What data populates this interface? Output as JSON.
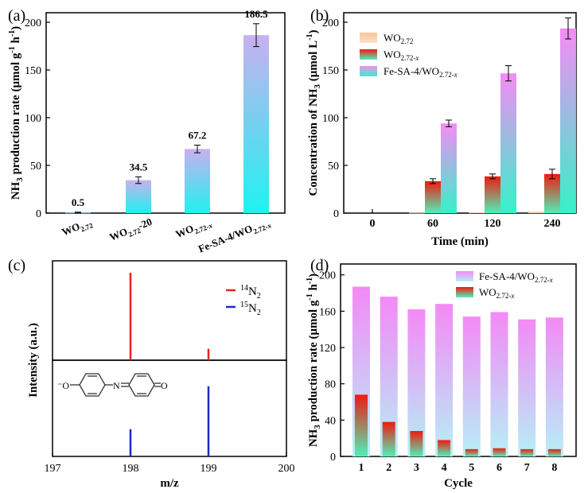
{
  "colors": {
    "purple_top": "#c9b0ef",
    "cyan_bottom": "#1ff2f0",
    "orange": "#f7c79a",
    "red_top": "#ef1a10",
    "green_bottom": "#4ff0b8",
    "magenta_top": "#f58cf5",
    "teal_bottom": "#35f2c8",
    "pink_top": "#f489f6",
    "lightblue_bottom": "#b5f1f6",
    "ms_red": "#e8251c",
    "ms_blue": "#1c2cc6"
  },
  "chart_data": [
    {
      "panel": "(a)",
      "type": "bar",
      "ylabel": "NH3 production rate (μmol g-1 h-1)",
      "ylim": [
        0,
        210
      ],
      "yticks": [
        "0",
        "50",
        "100",
        "150",
        "200"
      ],
      "categories": [
        "WO2.72",
        "WO2.72-20",
        "WO2.72-x",
        "Fe-SA-4/WO2.72-x"
      ],
      "values": [
        0.5,
        34.5,
        67.2,
        186.5
      ],
      "errors": [
        0.5,
        3.5,
        4.0,
        12.0
      ],
      "data_labels": [
        "0.5",
        "34.5",
        "67.2",
        "186.5"
      ]
    },
    {
      "panel": "(b)",
      "type": "bar",
      "xlabel": "Time (min)",
      "ylabel": "Concentration of NH3 (μmol L-1)",
      "ylim": [
        0,
        210
      ],
      "yticks": [
        "0",
        "50",
        "100",
        "150",
        "200"
      ],
      "categories": [
        "0",
        "60",
        "120",
        "240"
      ],
      "legend": "top-left",
      "series": [
        {
          "name": "WO2.72",
          "values": [
            0,
            0.5,
            1.0,
            1.5
          ],
          "errors": [
            0,
            0,
            0,
            0
          ]
        },
        {
          "name": "WO2.72-x",
          "values": [
            0,
            33.5,
            38.5,
            41
          ],
          "errors": [
            0,
            2.5,
            2.5,
            5
          ]
        },
        {
          "name": "Fe-SA-4/WO2.72-x",
          "values": [
            0,
            94,
            146.5,
            193.5
          ],
          "errors": [
            0,
            3.5,
            8,
            11
          ]
        }
      ]
    },
    {
      "panel": "(c)",
      "type": "bar",
      "xlabel": "m/z",
      "ylabel": "Intensity (a.u.)",
      "xlim": [
        197,
        200
      ],
      "xticks": [
        "197",
        "198",
        "199",
        "200"
      ],
      "legend": "top-right",
      "series": [
        {
          "name": "14N2",
          "x": [
            198,
            199
          ],
          "values": [
            1.0,
            0.13
          ]
        },
        {
          "name": "15N2",
          "x": [
            198,
            199
          ],
          "values": [
            0.35,
            0.9
          ]
        }
      ]
    },
    {
      "panel": "(d)",
      "type": "bar",
      "xlabel": "Cycle",
      "ylabel": "NH3 production rate (μmol g-1 h-1)",
      "ylim": [
        0,
        212
      ],
      "yticks": [
        "0",
        "40",
        "80",
        "120",
        "160",
        "200"
      ],
      "categories": [
        "1",
        "2",
        "3",
        "4",
        "5",
        "6",
        "7",
        "8"
      ],
      "legend": "top-right",
      "series": [
        {
          "name": "Fe-SA-4/WO2.72-x",
          "values": [
            187,
            176,
            162,
            168,
            154,
            159,
            151,
            153
          ]
        },
        {
          "name": "WO2.72-x",
          "values": [
            68,
            38,
            28,
            18,
            8,
            9,
            8,
            8
          ]
        }
      ]
    }
  ]
}
